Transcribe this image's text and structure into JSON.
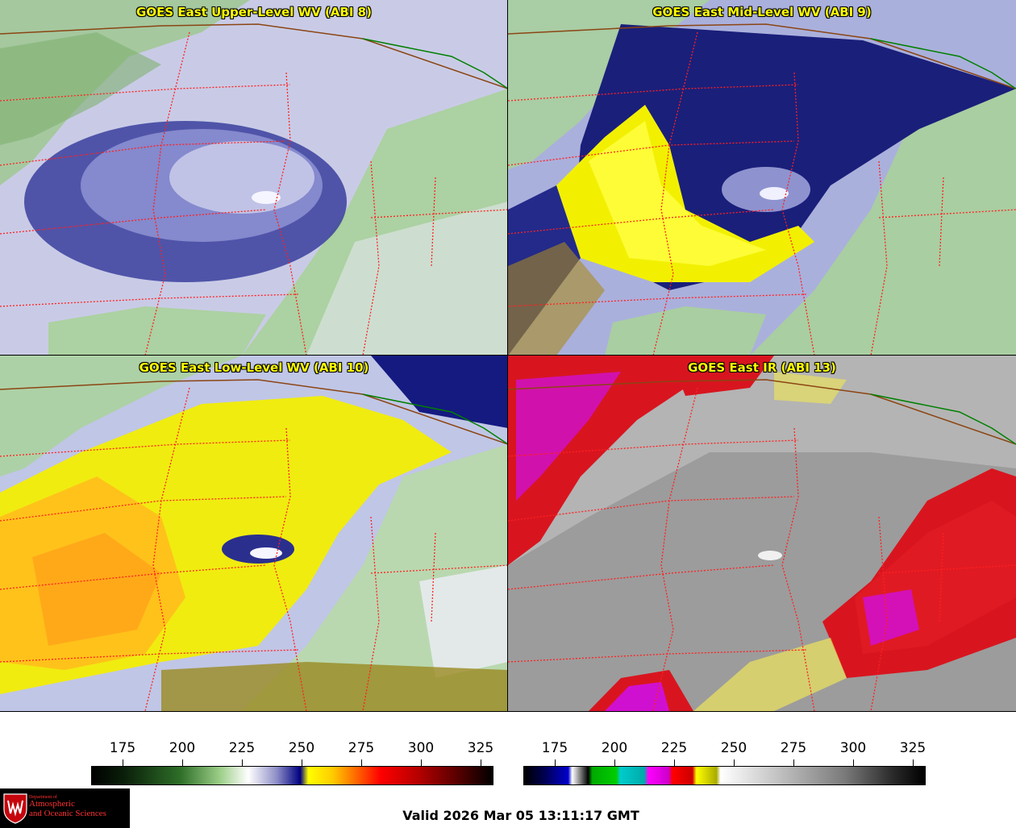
{
  "panels": [
    {
      "id": "p1",
      "title": "GOES East Upper-Level WV (ABI 8)",
      "palette": "wv",
      "scene": "upper"
    },
    {
      "id": "p2",
      "title": "GOES East Mid-Level WV (ABI 9)",
      "palette": "wv",
      "scene": "mid"
    },
    {
      "id": "p3",
      "title": "GOES East Low-Level WV (ABI 10)",
      "palette": "wv",
      "scene": "low"
    },
    {
      "id": "p4",
      "title": "GOES East IR (ABI 13)",
      "palette": "ir",
      "scene": "ir"
    }
  ],
  "colorbars": {
    "wv": {
      "ticks": [
        "175",
        "200",
        "225",
        "250",
        "275",
        "300",
        "325"
      ]
    },
    "ir": {
      "ticks": [
        "175",
        "200",
        "225",
        "250",
        "275",
        "300",
        "325"
      ]
    }
  },
  "colors": {
    "title": "#ffff00",
    "state_borders": "#ff2020",
    "canada_border": "#8b4513",
    "lake_border": "#008000"
  },
  "logo": {
    "line1": "Department of",
    "line2": "Atmospheric",
    "line3": "and Oceanic Sciences",
    "icon": "uw-crest-icon"
  },
  "footer": {
    "valid_time": "Valid 2026 Mar 05 13:11:17 GMT"
  }
}
